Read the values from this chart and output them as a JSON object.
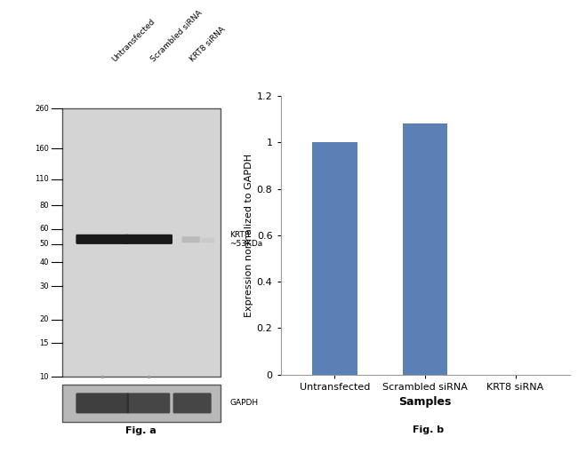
{
  "fig_a": {
    "lane_labels": [
      "Untransfected",
      "Scrambled siRNA",
      "KRT8 siRNA"
    ],
    "mw_markers": [
      260,
      160,
      110,
      80,
      60,
      50,
      40,
      30,
      20,
      15,
      10
    ],
    "krt8_label": "KRT8\n~53KDa",
    "gapdh_label": "GAPDH",
    "fig_label": "Fig. a",
    "gel_bg_color": "#d4d4d4",
    "gapdh_bg_color": "#b8b8b8"
  },
  "fig_b": {
    "categories": [
      "Untransfected",
      "Scrambled siRNA",
      "KRT8 siRNA"
    ],
    "values": [
      1.0,
      1.08,
      0.0
    ],
    "bar_color": "#5b80b5",
    "ylabel": "Expression normalized to GAPDH",
    "xlabel": "Samples",
    "ylim": [
      0,
      1.2
    ],
    "yticks": [
      0,
      0.2,
      0.4,
      0.6,
      0.8,
      1.0,
      1.2
    ],
    "fig_label": "Fig. b"
  }
}
